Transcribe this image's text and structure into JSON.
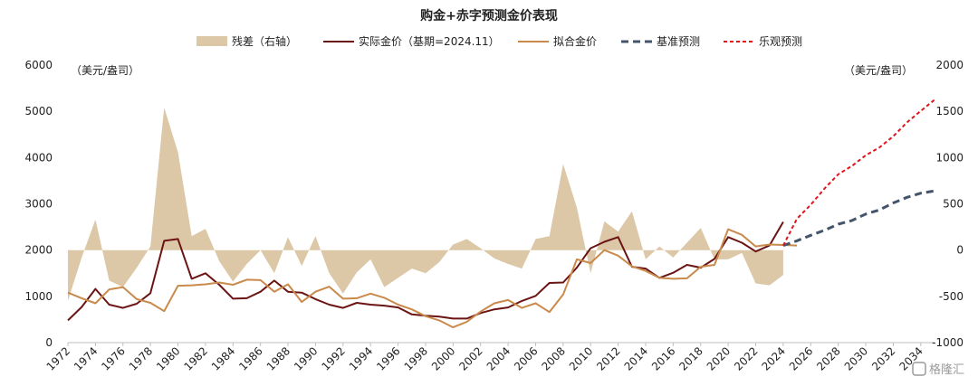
{
  "chart_data": {
    "type": "line",
    "title": "购金+赤字预测金价表现",
    "left_unit": "（美元/盎司）",
    "right_unit": "（美元/盎司）",
    "x_ticks": [
      "1972",
      "1974",
      "1976",
      "1978",
      "1980",
      "1982",
      "1984",
      "1986",
      "1988",
      "1990",
      "1992",
      "1994",
      "1996",
      "1998",
      "2000",
      "2002",
      "2004",
      "2006",
      "2008",
      "2010",
      "2012",
      "2014",
      "2016",
      "2018",
      "2020",
      "2022",
      "2024",
      "2026",
      "2028",
      "2030",
      "2032",
      "2034"
    ],
    "y_left": {
      "min": 0,
      "max": 6000,
      "ticks": [
        "0",
        "1000",
        "2000",
        "3000",
        "4000",
        "5000",
        "6000"
      ]
    },
    "y_right": {
      "min": -1000,
      "max": 2000,
      "ticks": [
        "-1000",
        "-500",
        "0",
        "500",
        "1000",
        "1500",
        "2000"
      ]
    },
    "xlim": [
      1972,
      2035
    ],
    "grid": false,
    "legend_position": "top",
    "series": [
      {
        "name": "残差（右轴）",
        "kind": "area",
        "axis": "right",
        "color": "#dcc7a7",
        "x": [
          1972,
          1973,
          1974,
          1975,
          1976,
          1977,
          1978,
          1979,
          1980,
          1981,
          1982,
          1983,
          1984,
          1985,
          1986,
          1987,
          1988,
          1989,
          1990,
          1991,
          1992,
          1993,
          1994,
          1995,
          1996,
          1997,
          1998,
          1999,
          2000,
          2001,
          2002,
          2003,
          2004,
          2005,
          2006,
          2007,
          2008,
          2009,
          2010,
          2011,
          2012,
          2013,
          2014,
          2015,
          2016,
          2017,
          2018,
          2019,
          2020,
          2021,
          2022,
          2023,
          2024
        ],
        "values": [
          -550,
          -80,
          330,
          -330,
          -400,
          -190,
          40,
          1540,
          1060,
          150,
          230,
          -120,
          -340,
          -150,
          0,
          -250,
          140,
          -170,
          150,
          -250,
          -470,
          -240,
          -100,
          -400,
          -300,
          -200,
          -250,
          -130,
          60,
          120,
          20,
          -90,
          -150,
          -200,
          120,
          150,
          930,
          460,
          -250,
          310,
          200,
          420,
          -100,
          40,
          -80,
          80,
          240,
          -100,
          -100,
          -30,
          -360,
          -380,
          -270
        ]
      },
      {
        "name": "实际金价（基期=2024.11）",
        "kind": "line",
        "axis": "left",
        "color": "#6b1414",
        "x": [
          1972,
          1973,
          1974,
          1975,
          1976,
          1977,
          1978,
          1979,
          1980,
          1981,
          1982,
          1983,
          1984,
          1985,
          1986,
          1987,
          1988,
          1989,
          1990,
          1991,
          1992,
          1993,
          1994,
          1995,
          1996,
          1997,
          1998,
          1999,
          2000,
          2001,
          2002,
          2003,
          2004,
          2005,
          2006,
          2007,
          2008,
          2009,
          2010,
          2011,
          2012,
          2013,
          2014,
          2015,
          2016,
          2017,
          2018,
          2019,
          2020,
          2021,
          2022,
          2023,
          2024
        ],
        "values": [
          480,
          770,
          1160,
          820,
          750,
          840,
          1070,
          2200,
          2240,
          1380,
          1500,
          1250,
          950,
          960,
          1100,
          1340,
          1100,
          1080,
          940,
          820,
          750,
          860,
          820,
          800,
          760,
          610,
          580,
          560,
          520,
          520,
          640,
          720,
          760,
          900,
          1010,
          1290,
          1300,
          1620,
          2040,
          2180,
          2280,
          1640,
          1600,
          1400,
          1510,
          1680,
          1620,
          1810,
          2280,
          2160,
          1970,
          2100,
          2610
        ]
      },
      {
        "name": "拟合金价",
        "kind": "line",
        "axis": "left",
        "color": "#c98a4b",
        "x": [
          1972,
          1973,
          1974,
          1975,
          1976,
          1977,
          1978,
          1979,
          1980,
          1981,
          1982,
          1983,
          1984,
          1985,
          1986,
          1987,
          1988,
          1989,
          1990,
          1991,
          1992,
          1993,
          1994,
          1995,
          1996,
          1997,
          1998,
          1999,
          2000,
          2001,
          2002,
          2003,
          2004,
          2005,
          2006,
          2007,
          2008,
          2009,
          2010,
          2011,
          2012,
          2013,
          2014,
          2015,
          2016,
          2017,
          2018,
          2019,
          2020,
          2021,
          2022,
          2023,
          2024,
          2025
        ],
        "values": [
          1080,
          960,
          850,
          1150,
          1200,
          940,
          860,
          680,
          1230,
          1240,
          1260,
          1300,
          1250,
          1360,
          1350,
          1100,
          1260,
          880,
          1100,
          1210,
          950,
          960,
          1060,
          970,
          820,
          720,
          570,
          480,
          330,
          450,
          670,
          850,
          920,
          750,
          850,
          660,
          1040,
          1800,
          1720,
          2000,
          1880,
          1650,
          1550,
          1400,
          1380,
          1390,
          1640,
          1680,
          2450,
          2330,
          2080,
          2120,
          2110,
          2100
        ]
      },
      {
        "name": "基准预测",
        "kind": "line",
        "dash": "8,5",
        "axis": "left",
        "color": "#44546a",
        "x": [
          2024,
          2025,
          2026,
          2027,
          2028,
          2029,
          2030,
          2031,
          2032,
          2033,
          2034,
          2035
        ],
        "values": [
          2100,
          2200,
          2320,
          2430,
          2560,
          2640,
          2780,
          2870,
          3020,
          3140,
          3230,
          3280
        ]
      },
      {
        "name": "乐观预测",
        "kind": "line",
        "dash": "4,3",
        "axis": "left",
        "color": "#e0151c",
        "x": [
          2024,
          2025,
          2026,
          2027,
          2028,
          2029,
          2030,
          2031,
          2032,
          2033,
          2034,
          2035
        ],
        "values": [
          2100,
          2680,
          2980,
          3330,
          3640,
          3820,
          4050,
          4220,
          4460,
          4760,
          5010,
          5250
        ]
      }
    ]
  },
  "watermark": "格隆汇"
}
